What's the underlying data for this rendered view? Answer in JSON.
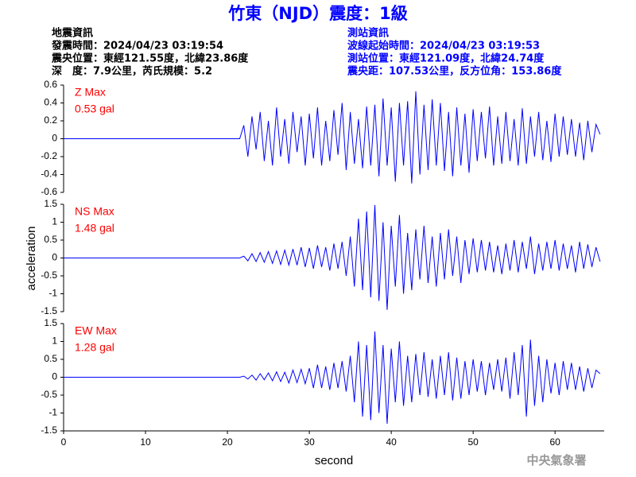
{
  "header": {
    "title": "竹東（NJD）震度：1級",
    "left": [
      "地震資訊",
      "發震時間：2024/04/23 03:19:54",
      "震央位置：東經121.55度，北緯23.86度",
      "深　度：7.9公里，芮氏規模：5.2"
    ],
    "right": [
      "測站資訊",
      "波線起始時間：2024/04/23 03:19:53",
      "測站位置：東經121.09度，北緯24.74度",
      "震央距：107.53公里，反方位角：153.86度"
    ]
  },
  "y_label": "acceleration",
  "footer": "中央氣象署",
  "chart_data": [
    {
      "type": "line",
      "annotation": "Z Max",
      "peak": {
        "value": 0.53,
        "label": "0.53 gal"
      },
      "color": "#0000ff",
      "xlim": [
        0,
        66
      ],
      "ylim": [
        -0.6,
        0.6
      ],
      "yticks": [
        -0.6,
        -0.4,
        -0.2,
        0,
        0.2,
        0.4,
        0.6
      ],
      "x": [
        0,
        5,
        10,
        15,
        20,
        21.5,
        22,
        22.5,
        23,
        23.5,
        24,
        24.5,
        25,
        25.5,
        26,
        26.5,
        27,
        27.5,
        28,
        28.5,
        29,
        29.5,
        30,
        30.5,
        31,
        31.5,
        32,
        32.5,
        33,
        33.5,
        34,
        34.5,
        35,
        35.5,
        36,
        36.5,
        37,
        37.5,
        38,
        38.5,
        39,
        39.5,
        40,
        40.5,
        41,
        41.5,
        42,
        42.5,
        43,
        43.5,
        44,
        44.5,
        45,
        45.5,
        46,
        46.5,
        47,
        47.5,
        48,
        48.5,
        49,
        49.5,
        50,
        50.5,
        51,
        51.5,
        52,
        52.5,
        53,
        53.5,
        54,
        54.5,
        55,
        55.5,
        56,
        56.5,
        57,
        57.5,
        58,
        58.5,
        59,
        59.5,
        60,
        60.5,
        61,
        61.5,
        62,
        62.5,
        63,
        63.5,
        64,
        64.5,
        65,
        65.5
      ],
      "values": [
        0,
        0,
        0,
        0,
        0,
        0,
        0.15,
        -0.2,
        0.25,
        -0.12,
        0.3,
        -0.25,
        0.2,
        -0.3,
        0.35,
        -0.2,
        0.22,
        -0.28,
        0.3,
        -0.15,
        0.25,
        -0.3,
        0.28,
        -0.22,
        0.35,
        -0.3,
        0.2,
        -0.25,
        0.32,
        -0.18,
        0.4,
        -0.35,
        0.3,
        -0.28,
        0.22,
        -0.33,
        0.36,
        -0.3,
        0.38,
        -0.42,
        0.45,
        -0.3,
        0.35,
        -0.48,
        0.4,
        -0.3,
        0.42,
        -0.5,
        0.53,
        -0.4,
        0.38,
        -0.35,
        0.44,
        -0.3,
        0.4,
        -0.36,
        0.3,
        -0.42,
        0.35,
        -0.3,
        0.28,
        -0.38,
        0.33,
        -0.25,
        0.3,
        -0.22,
        0.36,
        -0.3,
        0.25,
        -0.28,
        0.3,
        -0.25,
        0.22,
        -0.3,
        0.34,
        -0.28,
        0.25,
        -0.2,
        0.3,
        -0.24,
        0.2,
        -0.26,
        0.28,
        -0.2,
        0.25,
        -0.18,
        0.22,
        -0.2,
        0.18,
        -0.24,
        0.2,
        -0.15,
        0.16,
        0.05
      ]
    },
    {
      "type": "line",
      "annotation": "NS Max",
      "peak": {
        "value": 1.48,
        "label": "1.48 gal"
      },
      "color": "#0000ff",
      "xlim": [
        0,
        66
      ],
      "ylim": [
        -1.5,
        1.5
      ],
      "yticks": [
        -1.5,
        -1,
        -0.5,
        0,
        0.5,
        1,
        1.5
      ],
      "x": [
        0,
        5,
        10,
        15,
        20,
        21.5,
        22,
        22.5,
        23,
        23.5,
        24,
        24.5,
        25,
        25.5,
        26,
        26.5,
        27,
        27.5,
        28,
        28.5,
        29,
        29.5,
        30,
        30.5,
        31,
        31.5,
        32,
        32.5,
        33,
        33.5,
        34,
        34.5,
        35,
        35.5,
        36,
        36.5,
        37,
        37.5,
        38,
        38.5,
        39,
        39.5,
        40,
        40.5,
        41,
        41.5,
        42,
        42.5,
        43,
        43.5,
        44,
        44.5,
        45,
        45.5,
        46,
        46.5,
        47,
        47.5,
        48,
        48.5,
        49,
        49.5,
        50,
        50.5,
        51,
        51.5,
        52,
        52.5,
        53,
        53.5,
        54,
        54.5,
        55,
        55.5,
        56,
        56.5,
        57,
        57.5,
        58,
        58.5,
        59,
        59.5,
        60,
        60.5,
        61,
        61.5,
        62,
        62.5,
        63,
        63.5,
        64,
        64.5,
        65,
        65.5
      ],
      "values": [
        0,
        0,
        0,
        0,
        0,
        0,
        0.05,
        -0.08,
        0.12,
        -0.1,
        0.15,
        -0.12,
        0.18,
        -0.15,
        0.2,
        -0.18,
        0.22,
        -0.2,
        0.25,
        -0.2,
        0.3,
        -0.25,
        0.28,
        -0.3,
        0.35,
        -0.25,
        0.3,
        -0.35,
        0.4,
        -0.3,
        0.45,
        -0.5,
        0.6,
        -0.8,
        1.1,
        -0.9,
        1.3,
        -1.1,
        1.48,
        -1.2,
        1.0,
        -1.45,
        0.9,
        -0.8,
        1.2,
        -1.0,
        0.7,
        -0.9,
        0.8,
        -0.6,
        0.9,
        -0.7,
        0.6,
        -0.8,
        0.7,
        -0.6,
        0.8,
        -0.5,
        0.6,
        -0.7,
        0.5,
        -0.45,
        0.55,
        -0.4,
        0.5,
        -0.35,
        0.45,
        -0.4,
        0.35,
        -0.45,
        0.4,
        -0.35,
        0.5,
        -0.4,
        0.45,
        -0.3,
        0.6,
        -0.45,
        0.4,
        -0.35,
        0.45,
        -0.3,
        0.5,
        -0.35,
        0.4,
        -0.3,
        0.35,
        -0.4,
        0.45,
        -0.3,
        0.38,
        -0.25,
        0.3,
        -0.1
      ]
    },
    {
      "type": "line",
      "annotation": "EW Max",
      "peak": {
        "value": 1.28,
        "label": "1.28 gal"
      },
      "color": "#0000ff",
      "xlim": [
        0,
        66
      ],
      "ylim": [
        -1.5,
        1.5
      ],
      "yticks": [
        -1.5,
        -1,
        -0.5,
        0,
        0.5,
        1,
        1.5
      ],
      "xticks": [
        0,
        10,
        20,
        30,
        40,
        50,
        60
      ],
      "x_label": "second",
      "x": [
        0,
        5,
        10,
        15,
        20,
        21.5,
        22,
        22.5,
        23,
        23.5,
        24,
        24.5,
        25,
        25.5,
        26,
        26.5,
        27,
        27.5,
        28,
        28.5,
        29,
        29.5,
        30,
        30.5,
        31,
        31.5,
        32,
        32.5,
        33,
        33.5,
        34,
        34.5,
        35,
        35.5,
        36,
        36.5,
        37,
        37.5,
        38,
        38.5,
        39,
        39.5,
        40,
        40.5,
        41,
        41.5,
        42,
        42.5,
        43,
        43.5,
        44,
        44.5,
        45,
        45.5,
        46,
        46.5,
        47,
        47.5,
        48,
        48.5,
        49,
        49.5,
        50,
        50.5,
        51,
        51.5,
        52,
        52.5,
        53,
        53.5,
        54,
        54.5,
        55,
        55.5,
        56,
        56.5,
        57,
        57.5,
        58,
        58.5,
        59,
        59.5,
        60,
        60.5,
        61,
        61.5,
        62,
        62.5,
        63,
        63.5,
        64,
        64.5,
        65,
        65.5
      ],
      "values": [
        0,
        0,
        0,
        0,
        0,
        0,
        0.03,
        -0.05,
        0.06,
        -0.08,
        0.1,
        -0.07,
        0.12,
        -0.1,
        0.15,
        -0.12,
        0.14,
        -0.16,
        0.2,
        -0.15,
        0.22,
        -0.18,
        0.25,
        -0.3,
        0.35,
        -0.3,
        0.3,
        -0.35,
        0.4,
        -0.3,
        0.45,
        -0.4,
        0.6,
        -0.7,
        1.0,
        -1.1,
        0.9,
        -1.2,
        1.28,
        -1.0,
        0.9,
        -1.3,
        0.8,
        -0.7,
        1.0,
        -0.8,
        0.6,
        -0.7,
        0.65,
        -0.5,
        0.7,
        -0.55,
        0.5,
        -0.6,
        0.6,
        -0.5,
        0.7,
        -0.65,
        0.55,
        -0.6,
        0.45,
        -0.5,
        0.5,
        -0.4,
        0.45,
        -0.5,
        0.4,
        -0.35,
        0.5,
        -0.4,
        0.55,
        -0.6,
        0.7,
        -0.5,
        0.9,
        -1.1,
        1.05,
        -0.8,
        0.6,
        -0.7,
        0.5,
        -0.45,
        0.4,
        -0.5,
        0.45,
        -0.35,
        0.4,
        -0.35,
        0.3,
        -0.4,
        0.25,
        -0.3,
        0.2,
        0.1
      ]
    }
  ]
}
